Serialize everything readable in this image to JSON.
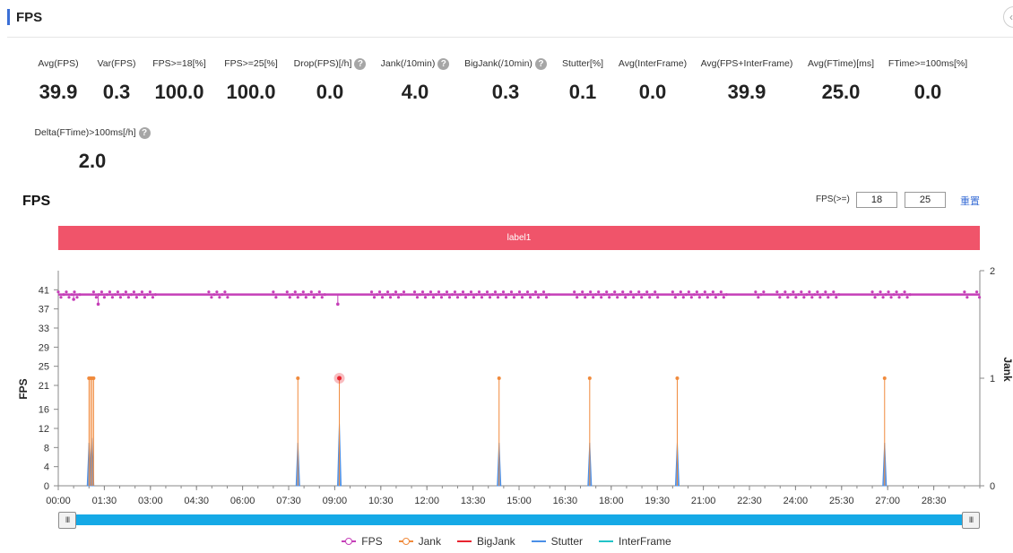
{
  "page": {
    "title": "FPS"
  },
  "metrics_row1": [
    {
      "label": "Avg(FPS)",
      "value": "39.9",
      "help": false
    },
    {
      "label": "Var(FPS)",
      "value": "0.3",
      "help": false
    },
    {
      "label": "FPS>=18[%]",
      "value": "100.0",
      "help": false
    },
    {
      "label": "FPS>=25[%]",
      "value": "100.0",
      "help": false
    },
    {
      "label": "Drop(FPS)[/h]",
      "value": "0.0",
      "help": true
    },
    {
      "label": "Jank(/10min)",
      "value": "4.0",
      "help": true
    },
    {
      "label": "BigJank(/10min)",
      "value": "0.3",
      "help": true
    },
    {
      "label": "Stutter[%]",
      "value": "0.1",
      "help": false
    },
    {
      "label": "Avg(InterFrame)",
      "value": "0.0",
      "help": false
    },
    {
      "label": "Avg(FPS+InterFrame)",
      "value": "39.9",
      "help": false
    },
    {
      "label": "Avg(FTime)[ms]",
      "value": "25.0",
      "help": false
    },
    {
      "label": "FTime>=100ms[%]",
      "value": "0.0",
      "help": false
    }
  ],
  "metrics_row2": [
    {
      "label": "Delta(FTime)>100ms[/h]",
      "value": "2.0",
      "help": true
    }
  ],
  "help_glyph": "?",
  "chart_header": {
    "title": "FPS",
    "threshold_label": "FPS(>=)",
    "threshold_low": "18",
    "threshold_high": "25",
    "reset_label": "重置"
  },
  "label_band": {
    "text": "label1",
    "color": "#f0546a"
  },
  "slider": {
    "handle_glyph": "III"
  },
  "colors": {
    "fps": "#c53fb8",
    "jank": "#f08a3c",
    "bigjank": "#e8242f",
    "stutter": "#4a8fe7",
    "interframe": "#22c3c8",
    "axis": "#888888",
    "slider": "#15a9e6"
  },
  "chart_data": {
    "type": "line",
    "title": "FPS",
    "x_unit": "minutes",
    "x_range": [
      0,
      30.0
    ],
    "x_ticks": [
      "00:00",
      "01:30",
      "03:00",
      "04:30",
      "06:00",
      "07:30",
      "09:00",
      "10:30",
      "12:00",
      "13:30",
      "15:00",
      "16:30",
      "18:00",
      "19:30",
      "21:00",
      "22:30",
      "24:00",
      "25:30",
      "27:00",
      "28:30"
    ],
    "y_left": {
      "label": "FPS",
      "ticks": [
        0,
        4,
        8,
        12,
        16,
        21,
        25,
        29,
        33,
        37,
        41
      ],
      "range": [
        0,
        45
      ]
    },
    "y_right": {
      "label": "Jank",
      "ticks": [
        0,
        1,
        2
      ],
      "range": [
        0,
        2
      ]
    },
    "legend": [
      "FPS",
      "Jank",
      "BigJank",
      "Stutter",
      "InterFrame"
    ],
    "fps_baseline": 40,
    "fps_active_segments": [
      [
        0.0,
        0.75
      ],
      [
        1.15,
        3.25
      ],
      [
        4.9,
        5.6
      ],
      [
        7.0,
        7.15
      ],
      [
        7.45,
        8.7
      ],
      [
        10.2,
        11.3
      ],
      [
        11.6,
        16.0
      ],
      [
        16.8,
        19.6
      ],
      [
        20.0,
        21.8
      ],
      [
        22.7,
        23.0
      ],
      [
        23.4,
        25.5
      ],
      [
        26.5,
        27.8
      ],
      [
        29.5,
        29.6
      ],
      [
        29.9,
        30.0
      ]
    ],
    "fps_dips": [
      {
        "x": 0.5,
        "y": 39
      },
      {
        "x": 1.3,
        "y": 38
      },
      {
        "x": 9.1,
        "y": 38
      }
    ],
    "series": [
      {
        "name": "Jank",
        "spikes": [
          {
            "x": 1.0,
            "y": 1
          },
          {
            "x": 1.05,
            "y": 1
          },
          {
            "x": 1.1,
            "y": 1
          },
          {
            "x": 1.15,
            "y": 1
          },
          {
            "x": 7.8,
            "y": 1
          },
          {
            "x": 14.35,
            "y": 1
          },
          {
            "x": 17.3,
            "y": 1
          },
          {
            "x": 20.15,
            "y": 1
          },
          {
            "x": 26.9,
            "y": 1
          }
        ]
      },
      {
        "name": "BigJank",
        "spikes": [
          {
            "x": 9.15,
            "y": 1
          }
        ]
      },
      {
        "name": "Stutter",
        "spikes": [
          {
            "x": 1.0,
            "y": 9
          },
          {
            "x": 1.1,
            "y": 10
          },
          {
            "x": 7.8,
            "y": 9
          },
          {
            "x": 9.15,
            "y": 13
          },
          {
            "x": 14.35,
            "y": 9
          },
          {
            "x": 17.3,
            "y": 9
          },
          {
            "x": 20.15,
            "y": 9
          },
          {
            "x": 26.9,
            "y": 9
          }
        ]
      },
      {
        "name": "InterFrame",
        "spikes": []
      }
    ]
  }
}
